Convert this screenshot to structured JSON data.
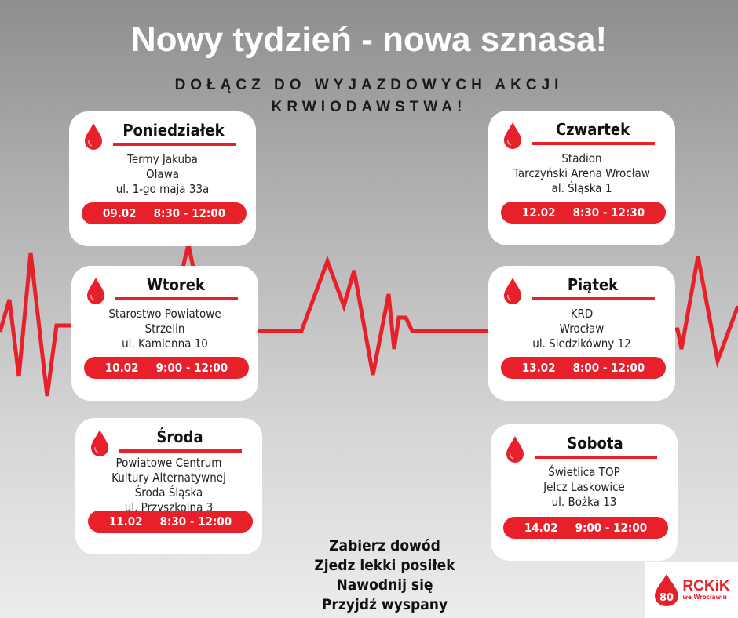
{
  "title": "Nowy tydzień - nowa sznasa!",
  "subtitle_line1": "DOŁĄCZ DO WYJAZDOWYCH AKCJI",
  "subtitle_line2": "KRWIODAWSTWA!",
  "accent_color": "#e8202a",
  "cards": [
    {
      "day": "Poniedziałek",
      "lines": [
        "Termy Jakuba",
        "Oława",
        "ul. 1-go maja 33a"
      ],
      "date": "09.02",
      "time": "8:30 - 12:00",
      "icon": "blood-drop-icon"
    },
    {
      "day": "Wtorek",
      "lines": [
        "Starostwo Powiatowe",
        "Strzelin",
        "ul. Kamienna 10"
      ],
      "date": "10.02",
      "time": "9:00 - 12:00",
      "icon": "blood-drop-icon"
    },
    {
      "day": "Środa",
      "lines": [
        "Powiatowe Centrum",
        "Kultury Alternatywnej",
        "Środa Śląska",
        "ul. Przyszkolna 3"
      ],
      "date": "11.02",
      "time": "8:30 - 12:00",
      "icon": "blood-drop-icon"
    },
    {
      "day": "Czwartek",
      "lines": [
        "Stadion",
        "Tarczyński Arena Wrocław",
        "al. Śląska 1"
      ],
      "date": "12.02",
      "time": "8:30 - 12:30",
      "icon": "blood-drop-icon"
    },
    {
      "day": "Piątek",
      "lines": [
        "KRD",
        "Wrocław",
        "ul. Siedzikówny 12"
      ],
      "date": "13.02",
      "time": "8:00 - 12:00",
      "icon": "blood-drop-icon"
    },
    {
      "day": "Sobota",
      "lines": [
        "Świetlica TOP",
        "Jelcz Laskowice",
        "ul. Bożka 13"
      ],
      "date": "14.02",
      "time": "9:00 - 12:00",
      "icon": "blood-drop-icon"
    }
  ],
  "tips": [
    "Zabierz dowód",
    "Zjedz lekki posiłek",
    "Nawodnij się",
    "Przyjdź wyspany"
  ],
  "logo": {
    "name": "RCKiK",
    "city": "we Wrocławiu",
    "badge": "80"
  }
}
